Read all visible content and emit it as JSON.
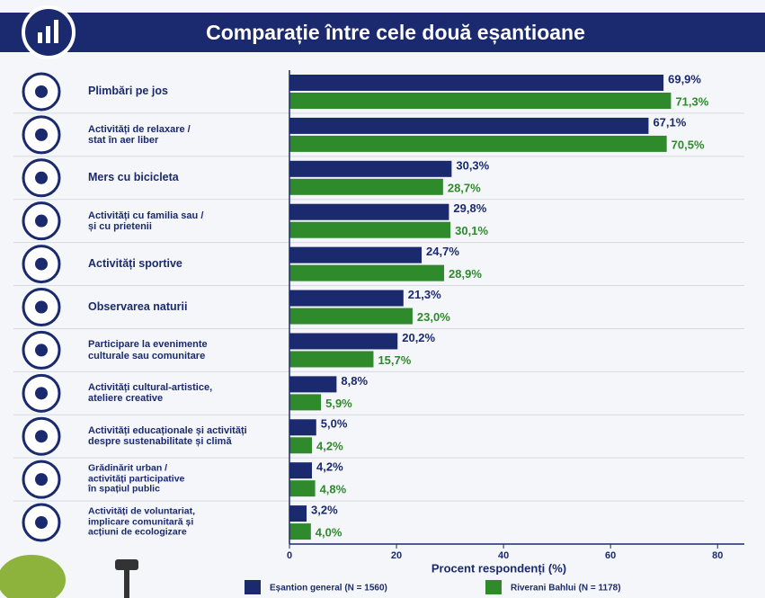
{
  "chart_data": {
    "type": "barh",
    "title": "Comparație între cele două eșantioane",
    "categories": [
      "Plimbări pe jos",
      "Activități de relaxare /\nstat în aer liber",
      "Mers cu bicicleta",
      "Activități cu familia sau /\nși cu prietenii",
      "Activități sportive",
      "Observarea naturii",
      "Participare la evenimente\nculturale sau comunitare",
      "Activități cultural-artistice,\nateliere creative",
      "Activități educaționale și activități\ndespre sustenabilitate și climă",
      "Grădinărit urban /\nactivități participative\nîn spațiul public",
      "Activități de voluntariat,\nimplicare comunitară și\nacțiuni de ecologizare"
    ],
    "series": [
      {
        "name": "Eșantion general (N = 1560)",
        "color": "#1b2a6e",
        "values": [
          69.9,
          67.1,
          30.3,
          29.8,
          24.7,
          21.3,
          20.2,
          8.8,
          5.0,
          4.2,
          3.2
        ],
        "value_labels": [
          "69,9%",
          "67,1%",
          "30,3%",
          "29,8%",
          "24,7%",
          "21,3%",
          "20,2%",
          "8,8%",
          "5,0%",
          "4,2%",
          "3,2%"
        ]
      },
      {
        "name": "Riverani Bahlui (N = 1178)",
        "color": "#2f8a2c",
        "values": [
          71.3,
          70.5,
          28.7,
          30.1,
          28.9,
          23.0,
          15.7,
          5.9,
          4.2,
          4.8,
          4.0
        ],
        "value_labels": [
          "71,3%",
          "70,5%",
          "28,7%",
          "30,1%",
          "28,9%",
          "23,0%",
          "15,7%",
          "5,9%",
          "4,2%",
          "4,8%",
          "4,0%"
        ]
      }
    ],
    "xlabel": "Procent respondenți (%)",
    "xlim": [
      0,
      85
    ],
    "xticks": [
      0,
      20,
      40,
      60,
      80
    ],
    "grid": false
  }
}
